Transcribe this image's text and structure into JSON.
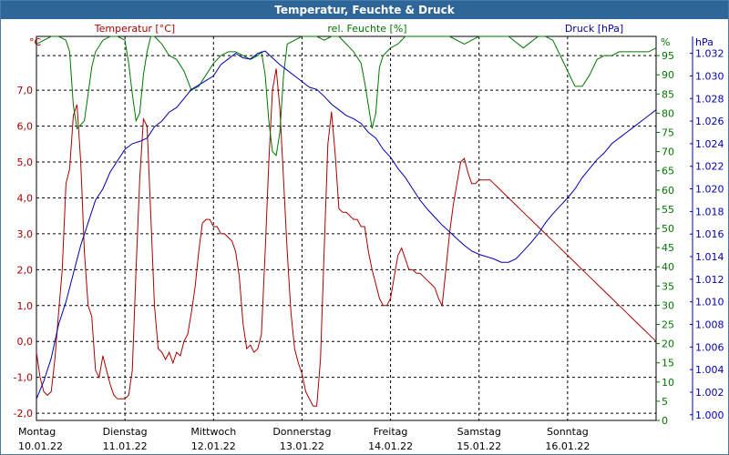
{
  "chart_data": {
    "type": "line",
    "title": "Temperatur, Feuchte & Druck",
    "x_unit": "hours since Montag 10.01.22 00:00",
    "xlim": [
      0,
      168
    ],
    "days": [
      {
        "name": "Montag",
        "date": "10.01.22"
      },
      {
        "name": "Dienstag",
        "date": "11.01.22"
      },
      {
        "name": "Mittwoch",
        "date": "12.01.22"
      },
      {
        "name": "Donnerstag",
        "date": "13.01.22"
      },
      {
        "name": "Freitag",
        "date": "14.01.22"
      },
      {
        "name": "Samstag",
        "date": "15.01.22"
      },
      {
        "name": "Sonntag",
        "date": "16.01.22"
      }
    ],
    "axes": {
      "temperature": {
        "unit_label": "°C",
        "ylim": [
          -2.2,
          8.5
        ],
        "ticks": [
          "-2,0",
          "-1,0",
          "0,0",
          "1,0",
          "2,0",
          "3,0",
          "4,0",
          "5,0",
          "6,0",
          "7,0"
        ],
        "tick_values": [
          -2,
          -1,
          0,
          1,
          2,
          3,
          4,
          5,
          6,
          7
        ]
      },
      "humidity": {
        "unit_label": "%",
        "ylim": [
          0,
          100
        ],
        "ticks": [
          "0",
          "5",
          "10",
          "15",
          "20",
          "25",
          "30",
          "35",
          "40",
          "45",
          "50",
          "55",
          "60",
          "65",
          "70",
          "75",
          "80",
          "85",
          "90",
          "95"
        ],
        "tick_values": [
          0,
          5,
          10,
          15,
          20,
          25,
          30,
          35,
          40,
          45,
          50,
          55,
          60,
          65,
          70,
          75,
          80,
          85,
          90,
          95
        ]
      },
      "pressure": {
        "unit_label": "hPa",
        "ylim": [
          0.9995,
          1.0335
        ],
        "ticks": [
          "1.000",
          "1.002",
          "1.004",
          "1.006",
          "1.008",
          "1.010",
          "1.012",
          "1.014",
          "1.016",
          "1.018",
          "1.020",
          "1.022",
          "1.024",
          "1.026",
          "1.028",
          "1.030",
          "1.032"
        ],
        "tick_values": [
          1.0,
          1.002,
          1.004,
          1.006,
          1.008,
          1.01,
          1.012,
          1.014,
          1.016,
          1.018,
          1.02,
          1.022,
          1.024,
          1.026,
          1.028,
          1.03,
          1.032
        ]
      }
    },
    "series": [
      {
        "name": "Temperatur [°C]",
        "axis": "temperature",
        "color": "#aa0000",
        "x": [
          0,
          1,
          2,
          3,
          4,
          5,
          6,
          7,
          8,
          9,
          10,
          11,
          12,
          13,
          14,
          15,
          16,
          17,
          18,
          19,
          20,
          21,
          22,
          23,
          24,
          25,
          26,
          27,
          28,
          29,
          30,
          31,
          32,
          33,
          34,
          35,
          36,
          37,
          38,
          39,
          40,
          41,
          42,
          43,
          44,
          45,
          46,
          47,
          48,
          49,
          50,
          51,
          52,
          53,
          54,
          55,
          56,
          57,
          58,
          59,
          60,
          61,
          62,
          63,
          64,
          65,
          66,
          67,
          68,
          69,
          70,
          71,
          72,
          73,
          74,
          75,
          76,
          77,
          78,
          79,
          80,
          81,
          82,
          83,
          84,
          85,
          86,
          87,
          88,
          89,
          90,
          91,
          92,
          93,
          94,
          95,
          96,
          97,
          98,
          99,
          100,
          101,
          102,
          103,
          104,
          105,
          106,
          107,
          108,
          109,
          110,
          111,
          112,
          113,
          114,
          115,
          116,
          117,
          118,
          119,
          120,
          121,
          122,
          123,
          124,
          125,
          126,
          127,
          128,
          129,
          130,
          131,
          132,
          133,
          134,
          135,
          136,
          137,
          138,
          139,
          140,
          141,
          142,
          143,
          144,
          145,
          146,
          147,
          148,
          149,
          150,
          151,
          152,
          153,
          154,
          155,
          156,
          157,
          158,
          159,
          160,
          161,
          162,
          163,
          164,
          165,
          166,
          167,
          168
        ],
        "values": [
          -0.3,
          -1.0,
          -1.4,
          -1.5,
          -1.4,
          -0.5,
          0.8,
          2.0,
          4.4,
          4.8,
          6.3,
          6.6,
          5.0,
          2.5,
          1.0,
          0.7,
          -0.8,
          -1.0,
          -0.4,
          -0.8,
          -1.2,
          -1.5,
          -1.6,
          -1.6,
          -1.6,
          -1.5,
          -0.8,
          2.0,
          4.5,
          6.2,
          6.0,
          3.5,
          1.0,
          -0.2,
          -0.3,
          -0.5,
          -0.3,
          -0.6,
          -0.3,
          -0.4,
          0.0,
          0.2,
          0.8,
          1.5,
          2.5,
          3.3,
          3.4,
          3.4,
          3.2,
          3.2,
          3.0,
          3.0,
          2.9,
          2.8,
          2.5,
          1.8,
          0.5,
          -0.2,
          -0.1,
          -0.3,
          -0.2,
          0.2,
          2.5,
          5.0,
          7.0,
          7.6,
          6.5,
          4.5,
          2.5,
          0.8,
          -0.2,
          -0.6,
          -0.9,
          -1.4,
          -1.6,
          -1.8,
          -1.8,
          -0.5,
          2.5,
          5.5,
          6.4,
          5.2,
          3.7,
          3.6,
          3.6,
          3.5,
          3.4,
          3.4,
          3.2,
          3.2,
          2.5,
          2.0,
          1.6,
          1.2,
          1.0,
          1.0,
          1.2,
          1.8,
          2.4,
          2.6,
          2.3,
          2.0,
          2.0,
          1.9,
          1.9,
          1.8,
          1.7,
          1.6,
          1.5,
          1.2,
          1.0,
          2.0,
          3.0,
          3.8,
          4.4,
          5.0,
          5.1,
          4.7,
          4.4,
          4.4,
          4.5,
          4.5,
          4.5,
          4.5,
          4.4,
          4.3,
          4.2,
          4.1,
          4.0,
          3.9,
          3.8,
          3.7,
          3.6,
          3.5,
          3.4,
          3.3,
          3.2,
          3.1,
          3.0,
          2.9,
          2.8,
          2.7,
          2.6,
          2.5,
          2.4,
          2.3,
          2.2,
          2.1,
          2.0,
          1.9,
          1.8,
          1.7,
          1.6,
          1.5,
          1.4,
          1.3,
          1.2,
          1.1,
          1.0,
          0.9,
          0.8,
          0.7,
          0.6,
          0.5,
          0.4,
          0.3,
          0.2,
          0.1,
          0.0
        ]
      },
      {
        "name": "rel. Feuchte [%]",
        "axis": "humidity",
        "color": "#007700",
        "x": [
          0,
          2,
          4,
          6,
          8,
          9,
          10,
          11,
          12,
          13,
          14,
          15,
          16,
          18,
          20,
          22,
          24,
          25,
          26,
          27,
          28,
          29,
          30,
          31,
          32,
          34,
          36,
          38,
          40,
          42,
          44,
          46,
          48,
          50,
          52,
          54,
          56,
          58,
          60,
          61,
          62,
          63,
          64,
          65,
          66,
          67,
          68,
          70,
          72,
          74,
          76,
          78,
          80,
          82,
          84,
          86,
          88,
          89,
          90,
          91,
          92,
          93,
          94,
          96,
          98,
          100,
          104,
          108,
          112,
          116,
          118,
          120,
          124,
          128,
          132,
          136,
          138,
          140,
          142,
          144,
          145,
          146,
          148,
          150,
          152,
          154,
          156,
          158,
          160,
          162,
          164,
          166,
          168
        ],
        "values": [
          98,
          99,
          100,
          100,
          99,
          96,
          82,
          76,
          77,
          78,
          85,
          92,
          96,
          99,
          100,
          100,
          99,
          93,
          85,
          78,
          80,
          90,
          96,
          100,
          100,
          98,
          95,
          94,
          91,
          86,
          87,
          90,
          93,
          95,
          96,
          96,
          95,
          94,
          95,
          96,
          90,
          78,
          70,
          69,
          75,
          90,
          98,
          99,
          100,
          100,
          100,
          99,
          100,
          100,
          98,
          96,
          93,
          88,
          82,
          76,
          80,
          92,
          95,
          97,
          98,
          100,
          100,
          100,
          100,
          98,
          99,
          100,
          100,
          100,
          97,
          100,
          100,
          99,
          95,
          91,
          89,
          87,
          87,
          90,
          94,
          95,
          95,
          96,
          96,
          96,
          96,
          96,
          97
        ]
      },
      {
        "name": "Druck [hPa]",
        "axis": "pressure",
        "color": "#0000aa",
        "x": [
          0,
          2,
          4,
          6,
          8,
          10,
          12,
          14,
          16,
          18,
          20,
          22,
          24,
          26,
          28,
          30,
          32,
          34,
          36,
          38,
          40,
          42,
          44,
          46,
          48,
          50,
          52,
          54,
          56,
          58,
          60,
          62,
          64,
          66,
          68,
          70,
          72,
          74,
          76,
          78,
          80,
          82,
          84,
          86,
          88,
          90,
          92,
          94,
          96,
          98,
          100,
          102,
          104,
          106,
          108,
          110,
          112,
          114,
          116,
          118,
          120,
          122,
          124,
          126,
          128,
          130,
          132,
          134,
          136,
          138,
          140,
          142,
          144,
          146,
          148,
          150,
          152,
          154,
          156,
          158,
          160,
          162,
          164,
          166,
          168
        ],
        "values": [
          1.0014,
          1.003,
          1.005,
          1.008,
          1.01,
          1.0125,
          1.015,
          1.017,
          1.019,
          1.02,
          1.0215,
          1.0225,
          1.0235,
          1.024,
          1.0242,
          1.0245,
          1.0255,
          1.026,
          1.0268,
          1.0272,
          1.028,
          1.0288,
          1.0292,
          1.0296,
          1.03,
          1.031,
          1.0315,
          1.032,
          1.0316,
          1.0315,
          1.032,
          1.0322,
          1.0316,
          1.031,
          1.0305,
          1.03,
          1.0295,
          1.029,
          1.0288,
          1.0282,
          1.0275,
          1.027,
          1.0265,
          1.0262,
          1.0258,
          1.025,
          1.0245,
          1.0235,
          1.0228,
          1.0218,
          1.021,
          1.02,
          1.019,
          1.0182,
          1.0175,
          1.0168,
          1.0162,
          1.0156,
          1.015,
          1.0145,
          1.0142,
          1.014,
          1.0138,
          1.0135,
          1.0135,
          1.0138,
          1.0145,
          1.0152,
          1.016,
          1.017,
          1.0178,
          1.0185,
          1.0192,
          1.02,
          1.021,
          1.0218,
          1.0226,
          1.0232,
          1.024,
          1.0245,
          1.025,
          1.0255,
          1.026,
          1.0265,
          1.027
        ]
      }
    ]
  }
}
